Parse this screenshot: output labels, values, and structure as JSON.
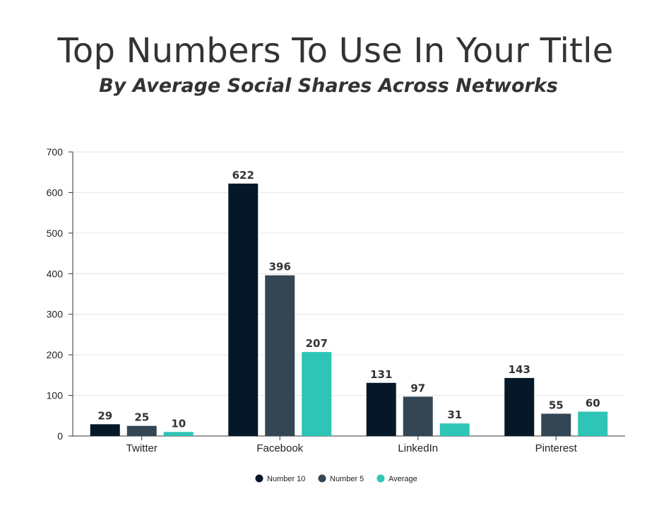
{
  "chart_data": {
    "type": "bar",
    "title": "Top Numbers To Use In Your Title",
    "subtitle": "By Average Social Shares Across Networks",
    "categories": [
      "Twitter",
      "Facebook",
      "LinkedIn",
      "Pinterest"
    ],
    "series": [
      {
        "name": "Number 10",
        "color": "#061828",
        "values": [
          29,
          622,
          131,
          143
        ]
      },
      {
        "name": "Number 5",
        "color": "#344654",
        "values": [
          25,
          396,
          97,
          55
        ]
      },
      {
        "name": "Average",
        "color": "#2ec4b6",
        "values": [
          10,
          207,
          31,
          60
        ]
      }
    ],
    "yticks": [
      0,
      100,
      200,
      300,
      400,
      500,
      600,
      700
    ],
    "ylim": [
      0,
      700
    ],
    "xlabel": "",
    "ylabel": "",
    "grid": true,
    "legend_position": "bottom"
  }
}
